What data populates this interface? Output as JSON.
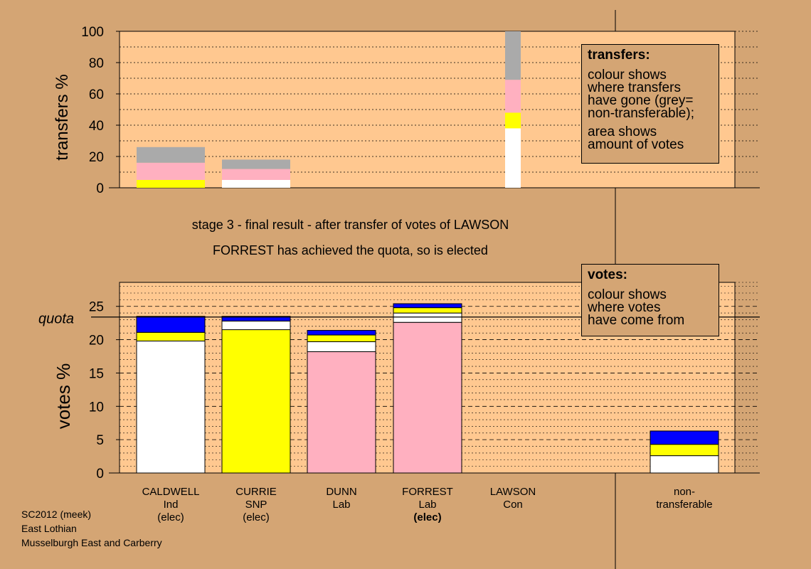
{
  "caption": {
    "line1": "stage 3 - final result - after transfer of votes of LAWSON",
    "line2": "FORREST has achieved the quota, so is elected"
  },
  "transfers_box": {
    "title": "transfers:",
    "line1": "colour shows\nwhere transfers\nhave gone (grey=\nnon-transferable);",
    "line2": "area shows\namount of votes"
  },
  "votes_box": {
    "title": "votes:",
    "line1": "colour shows\nwhere votes\nhave come from"
  },
  "footer": {
    "line1": "SC2012 (meek)",
    "line2": "East Lothian",
    "line3": "Musselburgh East and Carberry"
  },
  "candidates": [
    {
      "name": "CALDWELL",
      "party": "Ind",
      "status": "(elec)",
      "status_bold": false
    },
    {
      "name": "CURRIE",
      "party": "SNP",
      "status": "(elec)",
      "status_bold": false
    },
    {
      "name": "DUNN",
      "party": "Lab",
      "status": "",
      "status_bold": false
    },
    {
      "name": "FORREST",
      "party": "Lab",
      "status": "(elec)",
      "status_bold": true
    },
    {
      "name": "LAWSON",
      "party": "Con",
      "status": "",
      "status_bold": false
    },
    {
      "name": "non-",
      "party": "transferable",
      "status": "",
      "status_bold": false
    }
  ],
  "colors": {
    "background": "#d4a574",
    "plot_bg": "#ffc890",
    "white": "#ffffff",
    "yellow": "#ffff00",
    "pink": "#ffb0c0",
    "blue": "#0000ff",
    "grey": "#aaaaaa"
  },
  "chart_data": [
    {
      "type": "bar",
      "stacked": true,
      "ylabel": "transfers %",
      "ylim": [
        0,
        100
      ],
      "yticks": [
        0,
        20,
        40,
        60,
        80,
        100
      ],
      "categories": [
        "CALDWELL",
        "CURRIE",
        "DUNN",
        "FORREST",
        "LAWSON",
        "non-transferable"
      ],
      "series": [
        {
          "color": "white",
          "values": [
            0,
            5,
            0,
            0,
            38,
            0
          ]
        },
        {
          "color": "yellow",
          "values": [
            5,
            0,
            0,
            0,
            10,
            0
          ]
        },
        {
          "color": "pink",
          "values": [
            11,
            7,
            0,
            0,
            21,
            0
          ]
        },
        {
          "color": "grey",
          "values": [
            10,
            6,
            0,
            0,
            31,
            0
          ]
        }
      ],
      "narrow_bars": [
        "LAWSON"
      ]
    },
    {
      "type": "bar",
      "stacked": true,
      "ylabel": "votes %",
      "ylim": [
        0,
        28.6
      ],
      "yticks": [
        0,
        5,
        10,
        15,
        20,
        25
      ],
      "quota": 23.4,
      "quota_label": "quota",
      "categories": [
        "CALDWELL",
        "CURRIE",
        "DUNN",
        "FORREST",
        "LAWSON",
        "non-transferable"
      ],
      "series": [
        {
          "color": "white",
          "values": [
            19.8,
            0,
            0,
            0,
            0,
            2.6
          ]
        },
        {
          "color": "yellow",
          "values": [
            1.3,
            21.5,
            0,
            0,
            0,
            1.7
          ]
        },
        {
          "color": "pink",
          "values": [
            0,
            0,
            18.2,
            22.6,
            0,
            0
          ]
        },
        {
          "color": "white",
          "values": [
            0,
            1.3,
            1.5,
            1.4,
            0,
            0
          ]
        },
        {
          "color": "yellow",
          "values": [
            0,
            0,
            1.0,
            0.8,
            0,
            0
          ]
        },
        {
          "color": "blue",
          "values": [
            2.4,
            0.7,
            0.7,
            0.6,
            0,
            2.0
          ]
        }
      ]
    }
  ]
}
